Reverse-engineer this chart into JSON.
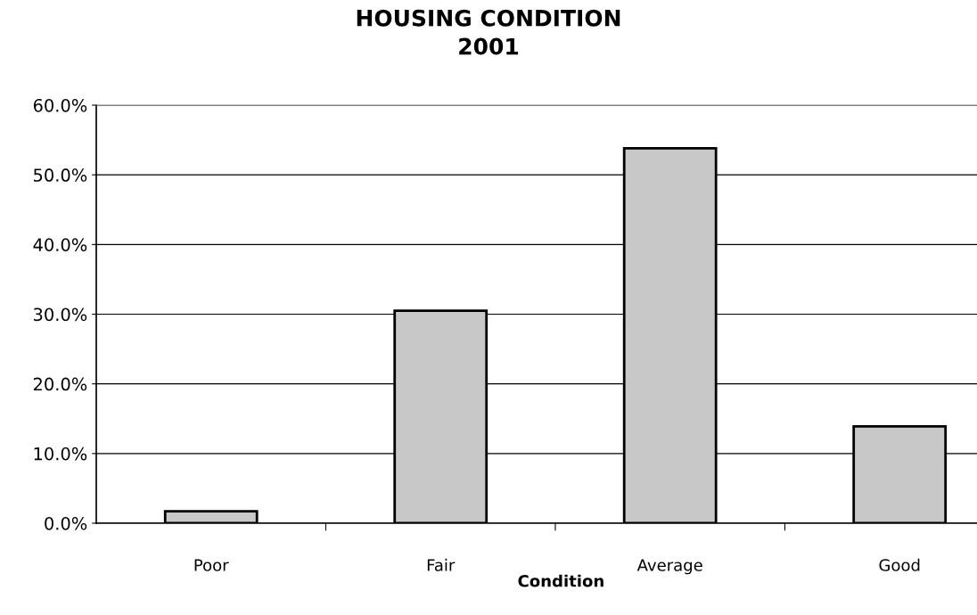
{
  "chart_data": {
    "type": "bar",
    "title": "HOUSING CONDITION\n2001",
    "xlabel": "Condition",
    "categories": [
      "Poor",
      "Fair",
      "Average",
      "Good"
    ],
    "values": [
      1.7,
      30.5,
      53.8,
      13.9
    ],
    "color": "#c8c8c8",
    "ylim": [
      0,
      60
    ],
    "yticks": [
      {
        "value": 0,
        "label": "0.0%"
      },
      {
        "value": 10,
        "label": "10.0%"
      },
      {
        "value": 20,
        "label": "20.0%"
      },
      {
        "value": 30,
        "label": "30.0%"
      },
      {
        "value": 40,
        "label": "40.0%"
      },
      {
        "value": 50,
        "label": "50.0%"
      },
      {
        "value": 60,
        "label": "60.0%"
      }
    ],
    "grid": "y",
    "legend": false
  }
}
